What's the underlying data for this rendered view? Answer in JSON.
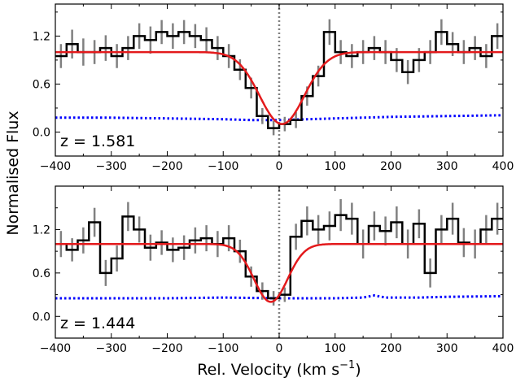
{
  "ylabel": "Normalised Flux",
  "xlabel_main": "Rel. Velocity (km s",
  "xlabel_sup": "−1",
  "xlabel_close": ")",
  "colors": {
    "data": "#000000",
    "errors": "#808080",
    "model": "#e31a1c",
    "noise": "#0000ff",
    "zero_line": "#808080"
  },
  "chart_data": [
    {
      "type": "line",
      "label": "z = 1.581",
      "xlim": [
        -400,
        400
      ],
      "ylim": [
        -0.3,
        1.6
      ],
      "xticks": [
        -400,
        -300,
        -200,
        -100,
        0,
        100,
        200,
        300,
        400
      ],
      "xtick_labels": [
        "−400",
        "−300",
        "−200",
        "−100",
        "0",
        "100",
        "200",
        "300",
        "400"
      ],
      "yticks": [
        0.0,
        0.6,
        1.2
      ],
      "ytick_labels": [
        "0.0",
        "0.6",
        "1.2"
      ],
      "reference_line_x": 0,
      "bin_width": 20,
      "flux": {
        "x": [
          -400,
          -380,
          -360,
          -340,
          -320,
          -300,
          -280,
          -260,
          -240,
          -220,
          -200,
          -180,
          -160,
          -140,
          -120,
          -100,
          -80,
          -60,
          -40,
          -20,
          0,
          20,
          40,
          60,
          80,
          100,
          120,
          140,
          160,
          180,
          200,
          220,
          240,
          260,
          280,
          300,
          320,
          340,
          360,
          380
        ],
        "y": [
          0.95,
          1.1,
          1.0,
          1.0,
          1.05,
          0.95,
          1.05,
          1.2,
          1.15,
          1.25,
          1.2,
          1.25,
          1.2,
          1.15,
          1.05,
          0.95,
          0.78,
          0.55,
          0.2,
          0.05,
          0.1,
          0.15,
          0.45,
          0.7,
          1.25,
          1.0,
          0.95,
          1.0,
          1.05,
          1.0,
          0.9,
          0.75,
          0.9,
          1.0,
          1.25,
          1.1,
          1.0,
          1.05,
          0.95,
          1.2
        ],
        "err": [
          0.15,
          0.18,
          0.17,
          0.15,
          0.16,
          0.15,
          0.15,
          0.16,
          0.17,
          0.15,
          0.16,
          0.15,
          0.15,
          0.16,
          0.15,
          0.15,
          0.13,
          0.13,
          0.1,
          0.09,
          0.09,
          0.1,
          0.12,
          0.13,
          0.16,
          0.15,
          0.15,
          0.15,
          0.15,
          0.15,
          0.15,
          0.15,
          0.15,
          0.15,
          0.16,
          0.15,
          0.15,
          0.15,
          0.15,
          0.16
        ]
      },
      "model": {
        "center": 5,
        "depth": 0.9,
        "sigma": 40,
        "continuum": 1.0
      },
      "noise": {
        "x": [
          -400,
          -300,
          -200,
          -100,
          -50,
          0,
          50,
          100,
          200,
          300,
          400
        ],
        "y": [
          0.18,
          0.18,
          0.17,
          0.16,
          0.15,
          0.15,
          0.16,
          0.17,
          0.19,
          0.2,
          0.21
        ]
      }
    },
    {
      "type": "line",
      "label": "z = 1.444",
      "xlim": [
        -400,
        400
      ],
      "ylim": [
        -0.3,
        1.8
      ],
      "xticks": [
        -400,
        -300,
        -200,
        -100,
        0,
        100,
        200,
        300,
        400
      ],
      "xtick_labels": [
        "−400",
        "−300",
        "−200",
        "−100",
        "0",
        "100",
        "200",
        "300",
        "400"
      ],
      "yticks": [
        0.0,
        0.6,
        1.2
      ],
      "ytick_labels": [
        "0.0",
        "0.6",
        "1.2"
      ],
      "reference_line_x": 0,
      "bin_width": 20,
      "flux": {
        "x": [
          -400,
          -380,
          -360,
          -340,
          -320,
          -300,
          -280,
          -260,
          -240,
          -220,
          -200,
          -180,
          -160,
          -140,
          -120,
          -100,
          -80,
          -60,
          -40,
          -20,
          0,
          20,
          40,
          60,
          80,
          100,
          120,
          140,
          160,
          180,
          200,
          220,
          240,
          260,
          280,
          300,
          320,
          340,
          360,
          380
        ],
        "y": [
          1.0,
          0.92,
          1.05,
          1.3,
          0.6,
          0.8,
          1.38,
          1.2,
          0.95,
          1.02,
          0.92,
          0.95,
          1.05,
          1.08,
          1.0,
          1.08,
          0.9,
          0.55,
          0.35,
          0.25,
          0.3,
          1.1,
          1.32,
          1.2,
          1.25,
          1.4,
          1.35,
          1.0,
          1.25,
          1.18,
          1.3,
          1.0,
          1.28,
          0.6,
          1.2,
          1.35,
          1.02,
          1.0,
          1.2,
          1.35
        ],
        "err": [
          0.18,
          0.16,
          0.18,
          0.2,
          0.18,
          0.18,
          0.2,
          0.18,
          0.18,
          0.17,
          0.17,
          0.17,
          0.18,
          0.18,
          0.18,
          0.18,
          0.16,
          0.14,
          0.12,
          0.1,
          0.1,
          0.18,
          0.2,
          0.2,
          0.2,
          0.22,
          0.22,
          0.2,
          0.2,
          0.2,
          0.22,
          0.2,
          0.2,
          0.2,
          0.2,
          0.22,
          0.2,
          0.2,
          0.2,
          0.22
        ]
      },
      "model": {
        "center": -15,
        "depth": 0.8,
        "sigma": 30,
        "continuum": 1.0
      },
      "noise": {
        "x": [
          -400,
          -300,
          -200,
          -100,
          0,
          100,
          150,
          170,
          190,
          250,
          300,
          400
        ],
        "y": [
          0.25,
          0.25,
          0.25,
          0.26,
          0.25,
          0.25,
          0.26,
          0.29,
          0.26,
          0.26,
          0.27,
          0.28
        ]
      }
    }
  ]
}
